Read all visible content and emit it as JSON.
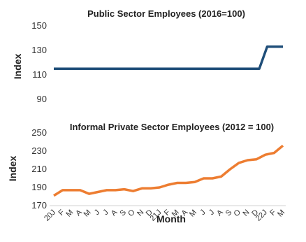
{
  "chart_data": [
    {
      "type": "line",
      "title": "Public Sector Employees (2016=100)",
      "ylabel": "Index",
      "xlabel": "",
      "ylim": [
        90,
        150
      ],
      "yticks": [
        90,
        110,
        130,
        150
      ],
      "grid": false,
      "color": "#1f4e79",
      "series": [
        {
          "values": [
            115,
            115,
            115,
            115,
            115,
            115,
            115,
            115,
            115,
            115,
            115,
            115,
            115,
            115,
            115,
            115,
            115,
            115,
            115,
            115,
            115,
            115,
            115,
            115,
            115,
            115,
            115,
            133,
            133,
            133
          ]
        }
      ]
    },
    {
      "type": "line",
      "title": "Informal Private Sector Employees (2012 = 100)",
      "ylabel": "Index",
      "xlabel": "Month",
      "ylim": [
        170,
        250
      ],
      "yticks": [
        170,
        190,
        210,
        230,
        250
      ],
      "grid": false,
      "color": "#ed7d31",
      "categories": [
        "20J",
        "F",
        "M",
        "A",
        "M",
        "J",
        "J",
        "A",
        "S",
        "O",
        "N",
        "D",
        "21J",
        "F",
        "M",
        "A",
        "M",
        "J",
        "J",
        "A",
        "S",
        "O",
        "N",
        "D",
        "22J",
        "F",
        "M"
      ],
      "series": [
        {
          "values": [
            181,
            187,
            187,
            187,
            183,
            185,
            187,
            187,
            188,
            186,
            189,
            189,
            190,
            193,
            195,
            195,
            196,
            200,
            200,
            202,
            210,
            217,
            220,
            221,
            226,
            228,
            236
          ]
        }
      ]
    }
  ]
}
